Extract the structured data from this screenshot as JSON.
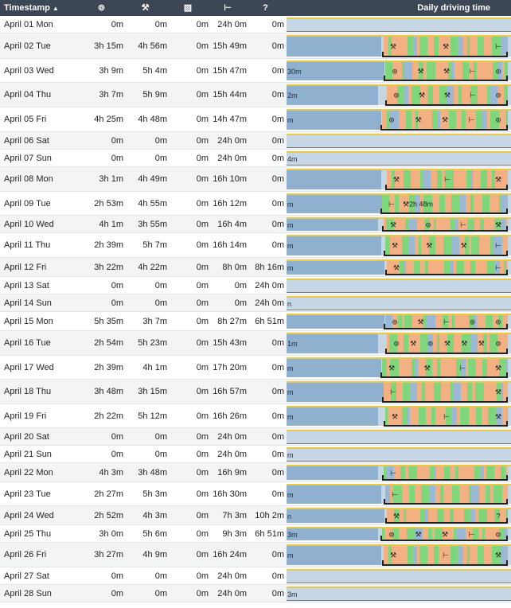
{
  "header": {
    "timestamp": "Timestamp",
    "sort_icon": "▲",
    "driving_icon": "⊚",
    "work_icon": "⚒",
    "available_icon": "▨",
    "rest_icon": "⊢",
    "unknown": "?",
    "daily": "Daily driving time"
  },
  "colors": {
    "header_bg": "#3c4654",
    "light": "#c7d6e4",
    "blue": "#8fb0cf",
    "drive": "#7fd67b",
    "work": "#f3b083",
    "rest": "#9bb8d5",
    "topline": "#e9c94a"
  },
  "rows": [
    {
      "date": "April 01 Mon",
      "driving": "0m",
      "work": "0m",
      "available": "0m",
      "rest": "24h 0m",
      "unknown": "0m",
      "bar": {
        "label": "",
        "day": false,
        "icons": []
      }
    },
    {
      "date": "April 02 Tue",
      "driving": "3h 15m",
      "work": "4h 56m",
      "available": "0m",
      "rest": "15h 49m",
      "unknown": "0m",
      "bar": {
        "label": "",
        "day": true,
        "icons": [
          "⚒",
          "⚒",
          "⊢"
        ]
      }
    },
    {
      "date": "April 03 Wed",
      "driving": "3h 9m",
      "work": "5h 4m",
      "available": "0m",
      "rest": "15h 47m",
      "unknown": "0m",
      "bar": {
        "label": "30m",
        "day": true,
        "icons": [
          "⊚",
          "⚒",
          "⚒",
          "⊢",
          "⊚"
        ]
      }
    },
    {
      "date": "April 04 Thu",
      "driving": "3h 7m",
      "work": "5h 9m",
      "available": "0m",
      "rest": "15h 44m",
      "unknown": "0m",
      "bar": {
        "label": "2m",
        "day": true,
        "icons": [
          "⊚",
          "⚒",
          "⚒",
          "⊢",
          "⊚"
        ]
      }
    },
    {
      "date": "April 05 Fri",
      "driving": "4h 25m",
      "work": "4h 48m",
      "available": "0m",
      "rest": "14h 47m",
      "unknown": "0m",
      "bar": {
        "label": "m",
        "day": true,
        "icons": [
          "⊚",
          "⚒",
          "⚒",
          "⊢",
          "⊚"
        ]
      }
    },
    {
      "date": "April 06 Sat",
      "driving": "0m",
      "work": "0m",
      "available": "0m",
      "rest": "24h 0m",
      "unknown": "0m",
      "bar": {
        "label": "",
        "day": false,
        "icons": []
      }
    },
    {
      "date": "April 07 Sun",
      "driving": "0m",
      "work": "0m",
      "available": "0m",
      "rest": "24h 0m",
      "unknown": "0m",
      "bar": {
        "label": "4m",
        "day": false,
        "icons": []
      }
    },
    {
      "date": "April 08 Mon",
      "driving": "3h 1m",
      "work": "4h 49m",
      "available": "0m",
      "rest": "16h 10m",
      "unknown": "0m",
      "bar": {
        "label": "",
        "day": true,
        "icons": [
          "⚒",
          "⊢",
          "⚒"
        ]
      }
    },
    {
      "date": "April 09 Tue",
      "driving": "2h 53m",
      "work": "4h 55m",
      "available": "0m",
      "rest": "16h 12m",
      "unknown": "0m",
      "bar": {
        "label": "m",
        "day": true,
        "icons": [
          "⊢"
        ],
        "center": "⚒2h 48m"
      }
    },
    {
      "date": "April 10 Wed",
      "driving": "4h 1m",
      "work": "3h 55m",
      "available": "0m",
      "rest": "16h 4m",
      "unknown": "0m",
      "bar": {
        "label": "m",
        "day": true,
        "icons": [
          "⚒",
          "⊚",
          "⊢",
          "⚒"
        ]
      }
    },
    {
      "date": "April 11 Thu",
      "driving": "2h 39m",
      "work": "5h 7m",
      "available": "0m",
      "rest": "16h 14m",
      "unknown": "0m",
      "bar": {
        "label": "m",
        "day": true,
        "icons": [
          "⚒",
          "⚒",
          "⚒",
          "⊢"
        ]
      }
    },
    {
      "date": "April 12 Fri",
      "driving": "3h 22m",
      "work": "4h 22m",
      "available": "0m",
      "rest": "8h 0m",
      "unknown": "8h 16m",
      "bar": {
        "label": "m",
        "day": true,
        "icons": [
          "⚒",
          "⊢"
        ]
      }
    },
    {
      "date": "April 13 Sat",
      "driving": "0m",
      "work": "0m",
      "available": "0m",
      "rest": "0m",
      "unknown": "24h 0m",
      "bar": {
        "label": "",
        "day": false,
        "icons": []
      }
    },
    {
      "date": "April 14 Sun",
      "driving": "0m",
      "work": "0m",
      "available": "0m",
      "rest": "0m",
      "unknown": "24h 0m",
      "bar": {
        "label": "n",
        "day": false,
        "icons": []
      }
    },
    {
      "date": "April 15 Mon",
      "driving": "5h 35m",
      "work": "3h 7m",
      "available": "0m",
      "rest": "8h 27m",
      "unknown": "6h 51m",
      "bar": {
        "label": "",
        "day": true,
        "icons": [
          "⊚",
          "⚒",
          "⊢",
          "⊚",
          "⊚"
        ]
      }
    },
    {
      "date": "April 16 Tue",
      "driving": "2h 54m",
      "work": "5h 23m",
      "available": "0m",
      "rest": "15h 43m",
      "unknown": "0m",
      "bar": {
        "label": "1m",
        "day": true,
        "icons": [
          "⊚",
          "⚒",
          "⊚",
          "⚒",
          "⚒",
          "⚒",
          "⊚"
        ]
      }
    },
    {
      "date": "April 17 Wed",
      "driving": "2h 39m",
      "work": "4h 1m",
      "available": "0m",
      "rest": "17h 20m",
      "unknown": "0m",
      "bar": {
        "label": "m",
        "day": true,
        "icons": [
          "⚒",
          "⚒",
          "⊢",
          "⚒"
        ]
      }
    },
    {
      "date": "April 18 Thu",
      "driving": "3h 48m",
      "work": "3h 15m",
      "available": "0m",
      "rest": "16h 57m",
      "unknown": "0m",
      "bar": {
        "label": "m",
        "day": true,
        "icons": [
          "⊢",
          "⚒"
        ]
      }
    },
    {
      "date": "April 19 Fri",
      "driving": "2h 22m",
      "work": "5h 12m",
      "available": "0m",
      "rest": "16h 26m",
      "unknown": "0m",
      "bar": {
        "label": "m",
        "day": true,
        "icons": [
          "⚒",
          "⊢",
          "⚒"
        ]
      }
    },
    {
      "date": "April 20 Sat",
      "driving": "0m",
      "work": "0m",
      "available": "0m",
      "rest": "24h 0m",
      "unknown": "0m",
      "bar": {
        "label": "",
        "day": false,
        "icons": []
      }
    },
    {
      "date": "April 21 Sun",
      "driving": "0m",
      "work": "0m",
      "available": "0m",
      "rest": "24h 0m",
      "unknown": "0m",
      "bar": {
        "label": "m",
        "day": false,
        "icons": []
      }
    },
    {
      "date": "April 22 Mon",
      "driving": "4h 3m",
      "work": "3h 48m",
      "available": "0m",
      "rest": "16h 9m",
      "unknown": "0m",
      "bar": {
        "label": "",
        "day": true,
        "icons": [
          "⊢"
        ]
      }
    },
    {
      "date": "April 23 Tue",
      "driving": "2h 27m",
      "work": "5h 3m",
      "available": "0m",
      "rest": "16h 30m",
      "unknown": "0m",
      "bar": {
        "label": "m",
        "day": true,
        "icons": [
          "⊢"
        ]
      }
    },
    {
      "date": "April 24 Wed",
      "driving": "2h 52m",
      "work": "4h 3m",
      "available": "0m",
      "rest": "7h 3m",
      "unknown": "10h 2m",
      "bar": {
        "label": "n",
        "day": true,
        "icons": [
          "⚒",
          "?"
        ]
      }
    },
    {
      "date": "April 25 Thu",
      "driving": "3h 0m",
      "work": "5h 6m",
      "available": "0m",
      "rest": "9h 3m",
      "unknown": "6h 51m",
      "bar": {
        "label": "3m",
        "day": true,
        "icons": [
          "⊚",
          "⚒",
          "⚒",
          "⊢",
          "⊚"
        ]
      }
    },
    {
      "date": "April 26 Fri",
      "driving": "3h 27m",
      "work": "4h 9m",
      "available": "0m",
      "rest": "16h 24m",
      "unknown": "0m",
      "bar": {
        "label": "m",
        "day": true,
        "icons": [
          "⚒",
          "⊢",
          "⚒"
        ]
      }
    },
    {
      "date": "April 27 Sat",
      "driving": "0m",
      "work": "0m",
      "available": "0m",
      "rest": "24h 0m",
      "unknown": "0m",
      "bar": {
        "label": "",
        "day": false,
        "icons": []
      }
    },
    {
      "date": "April 28 Sun",
      "driving": "0m",
      "work": "0m",
      "available": "0m",
      "rest": "24h 0m",
      "unknown": "0m",
      "bar": {
        "label": "3m",
        "day": false,
        "icons": []
      }
    }
  ]
}
